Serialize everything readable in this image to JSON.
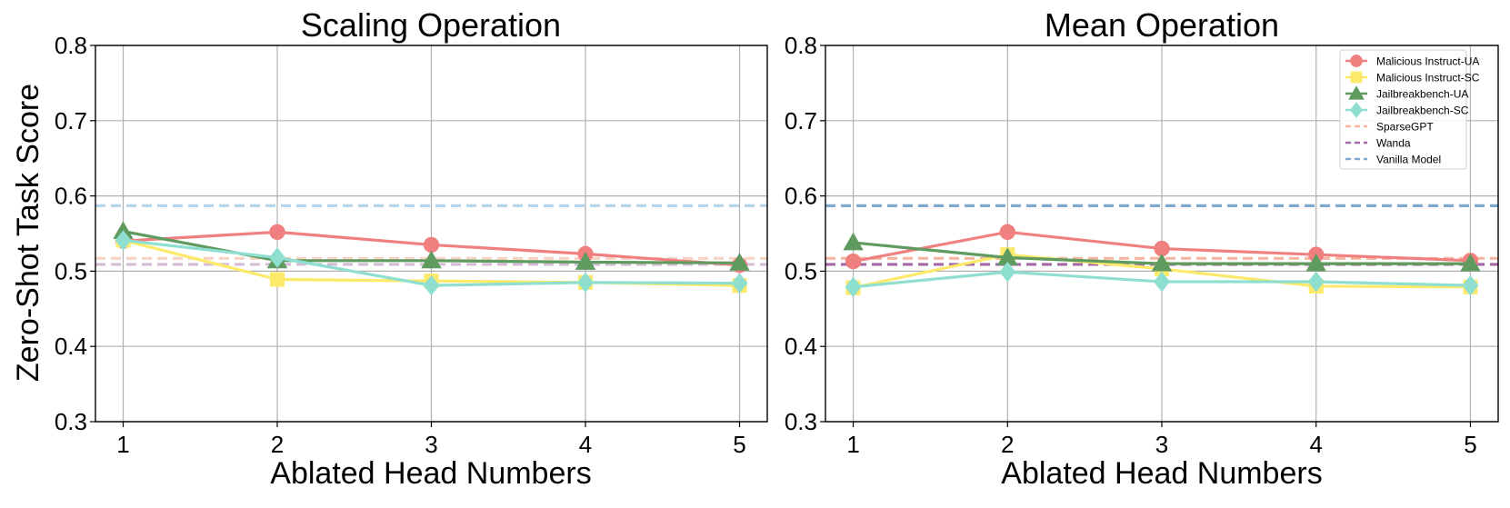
{
  "shared": {
    "ylabel": "Zero-Shot Task Score",
    "xlabel": "Ablated Head Numbers"
  },
  "colors": {
    "malicious_ua": "#f08080",
    "malicious_sc": "#fde96a",
    "jailbreak_ua": "#5f9a5f",
    "jailbreak_sc": "#8edfd0",
    "sparsegpt": "#f4b6a0",
    "wanda": "#a56aa5",
    "vanilla": "#7fa9cf"
  },
  "chart_data": [
    {
      "type": "line",
      "title": "Scaling Operation",
      "xlabel": "Ablated Head Numbers",
      "ylabel": "Zero-Shot Task Score",
      "x": [
        1,
        2,
        3,
        4,
        5
      ],
      "xticks": [
        "1",
        "2",
        "3",
        "4",
        "5"
      ],
      "ylim": [
        0.3,
        0.8
      ],
      "yticks": [
        "0.3",
        "0.4",
        "0.5",
        "0.6",
        "0.7",
        "0.8"
      ],
      "grid": true,
      "series": [
        {
          "name": "Malicious Instruct-UA",
          "values": [
            0.54,
            0.552,
            0.535,
            0.523,
            0.508
          ],
          "marker": "circle",
          "color": "#f08080"
        },
        {
          "name": "Malicious Instruct-SC",
          "values": [
            0.541,
            0.489,
            0.487,
            0.485,
            0.481
          ],
          "marker": "square",
          "color": "#fde96a"
        },
        {
          "name": "Jailbreakbench-UA",
          "values": [
            0.553,
            0.514,
            0.514,
            0.512,
            0.511
          ],
          "marker": "triangle",
          "color": "#5f9a5f"
        },
        {
          "name": "Jailbreakbench-SC",
          "values": [
            0.541,
            0.518,
            0.481,
            0.485,
            0.484
          ],
          "marker": "diamond",
          "color": "#8edfd0"
        }
      ],
      "reference_lines": [
        {
          "name": "SparseGPT",
          "value": 0.517,
          "color": "#f4c5b0",
          "opacity": 0.75
        },
        {
          "name": "Wanda",
          "value": 0.509,
          "color": "#c8a6c8",
          "opacity": 0.75
        },
        {
          "name": "Vanilla Model",
          "value": 0.587,
          "color": "#a9d0ea",
          "opacity": 0.85
        }
      ]
    },
    {
      "type": "line",
      "title": "Mean Operation",
      "xlabel": "Ablated Head Numbers",
      "ylabel": "",
      "x": [
        1,
        2,
        3,
        4,
        5
      ],
      "xticks": [
        "1",
        "2",
        "3",
        "4",
        "5"
      ],
      "ylim": [
        0.3,
        0.8
      ],
      "yticks": [
        "0.3",
        "0.4",
        "0.5",
        "0.6",
        "0.7",
        "0.8"
      ],
      "grid": true,
      "legend_position": "top-right",
      "series": [
        {
          "name": "Malicious Instruct-UA",
          "values": [
            0.513,
            0.552,
            0.53,
            0.522,
            0.514
          ],
          "marker": "circle",
          "color": "#f08080"
        },
        {
          "name": "Malicious Instruct-SC",
          "values": [
            0.478,
            0.522,
            0.503,
            0.48,
            0.479
          ],
          "marker": "square",
          "color": "#fde96a"
        },
        {
          "name": "Jailbreakbench-UA",
          "values": [
            0.538,
            0.518,
            0.51,
            0.51,
            0.51
          ],
          "marker": "triangle",
          "color": "#5f9a5f"
        },
        {
          "name": "Jailbreakbench-SC",
          "values": [
            0.479,
            0.499,
            0.486,
            0.486,
            0.481
          ],
          "marker": "diamond",
          "color": "#8edfd0"
        }
      ],
      "reference_lines": [
        {
          "name": "SparseGPT",
          "value": 0.517,
          "color": "#f4b6a0",
          "opacity": 1
        },
        {
          "name": "Wanda",
          "value": 0.509,
          "color": "#a56aa5",
          "opacity": 1
        },
        {
          "name": "Vanilla Model",
          "value": 0.587,
          "color": "#7fa9cf",
          "opacity": 1
        }
      ]
    }
  ],
  "legend": {
    "entries": [
      {
        "label": "Malicious Instruct-UA",
        "kind": "marker",
        "marker": "circle",
        "color": "#f08080"
      },
      {
        "label": "Malicious Instruct-SC",
        "kind": "marker",
        "marker": "square",
        "color": "#fde96a"
      },
      {
        "label": "Jailbreakbench-UA",
        "kind": "marker",
        "marker": "triangle",
        "color": "#5f9a5f"
      },
      {
        "label": "Jailbreakbench-SC",
        "kind": "marker",
        "marker": "diamond",
        "color": "#8edfd0"
      },
      {
        "label": "SparseGPT",
        "kind": "dash",
        "color": "#f4b6a0"
      },
      {
        "label": "Wanda",
        "kind": "dash",
        "color": "#a56aa5"
      },
      {
        "label": "Vanilla Model",
        "kind": "dash",
        "color": "#7fa9cf"
      }
    ]
  }
}
